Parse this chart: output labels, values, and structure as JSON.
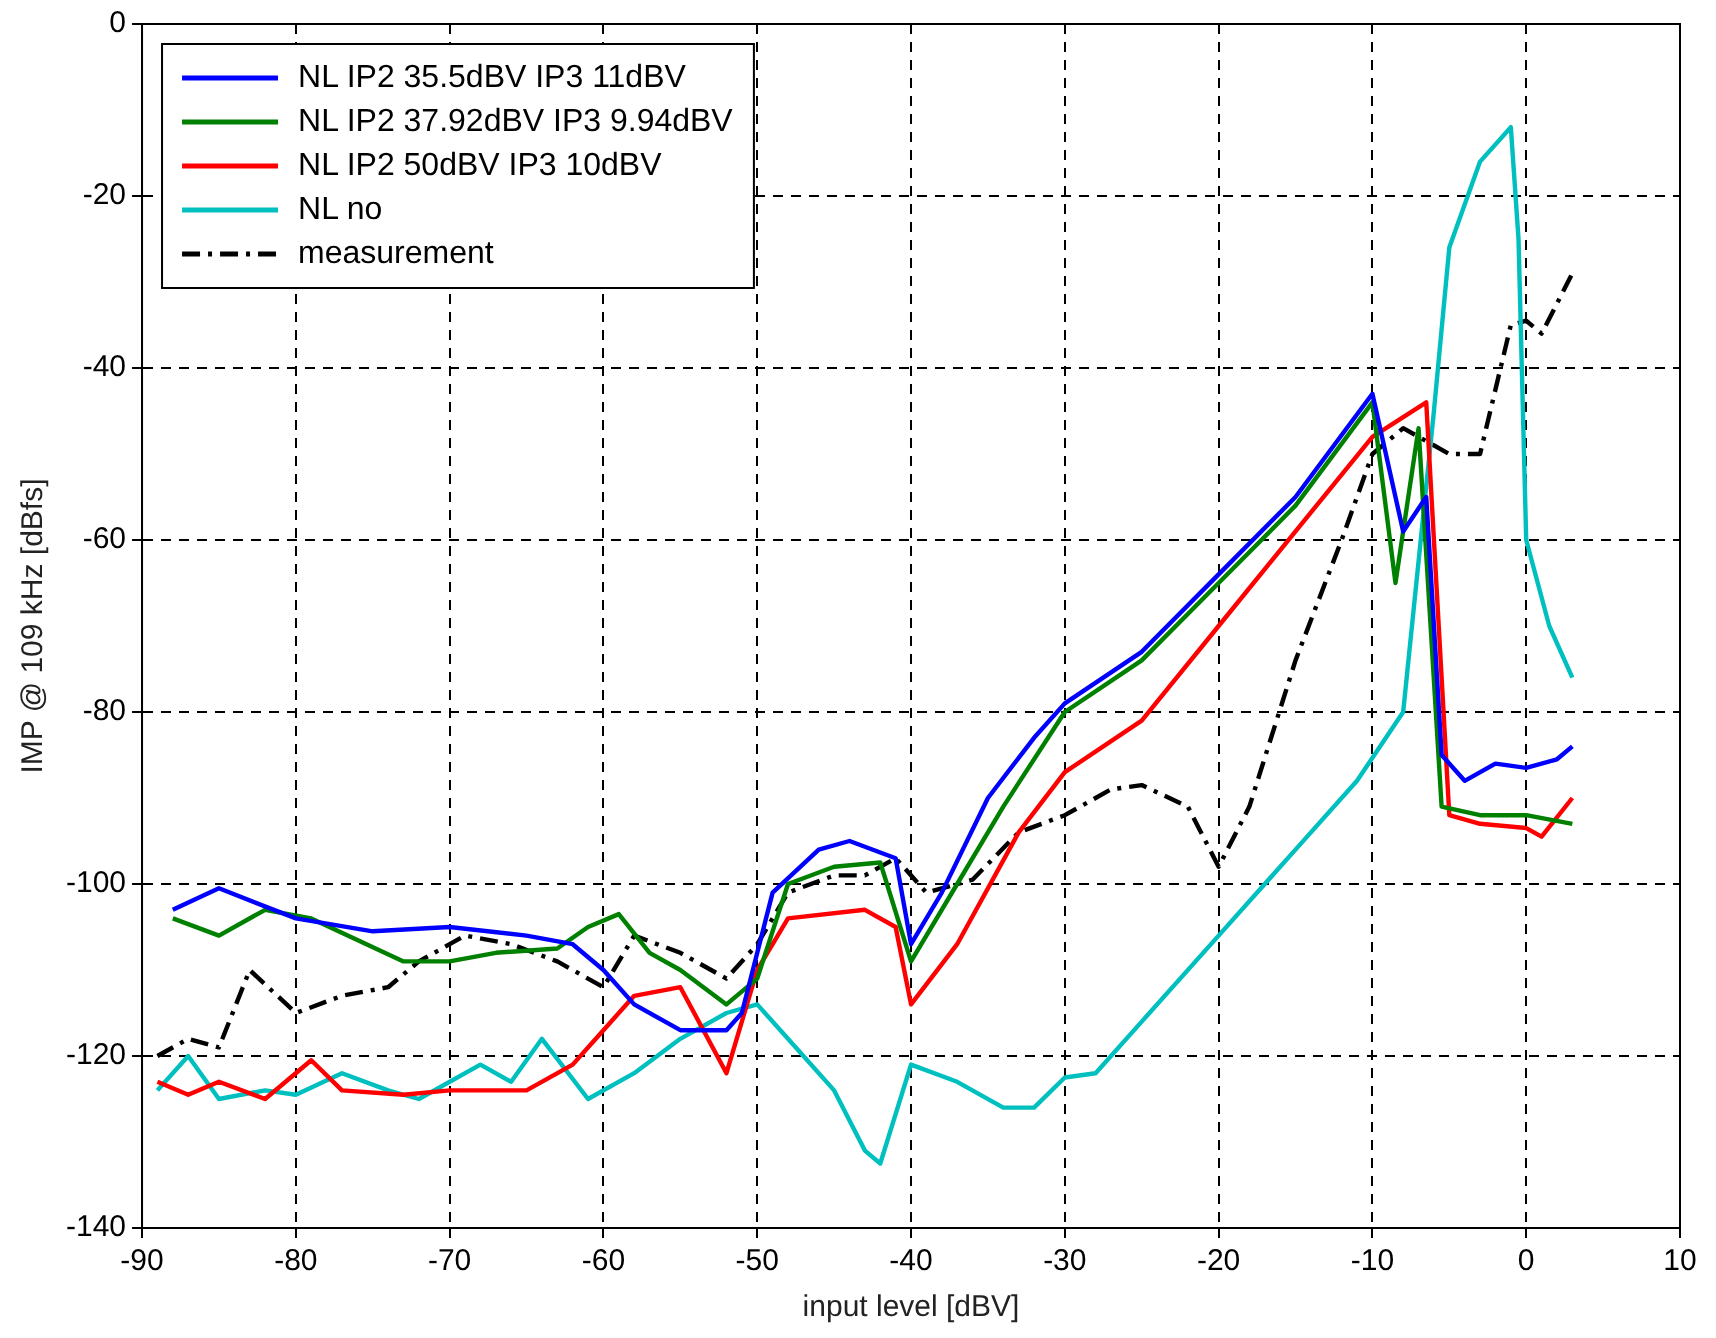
{
  "chart_data": {
    "type": "line",
    "xlabel": "input level [dBV]",
    "ylabel": "IMP @ 109 kHz [dBfs]",
    "xlim": [
      -90,
      10
    ],
    "xticks": [
      -90,
      -80,
      -70,
      -60,
      -50,
      -40,
      -30,
      -20,
      -10,
      0,
      10
    ],
    "ylim": [
      -140,
      0
    ],
    "yticks": [
      -140,
      -120,
      -100,
      -80,
      -60,
      -40,
      -20,
      0
    ],
    "grid": true,
    "legend": "top left",
    "marker": "none",
    "series": [
      {
        "name": "NL IP2 35.5dBV IP3 11dBV",
        "color": "#0000ff",
        "x": [
          -88,
          -85,
          -80,
          -75,
          -70,
          -65,
          -62,
          -60,
          -58,
          -55,
          -52,
          -51,
          -49,
          -46,
          -44,
          -41,
          -40,
          -38,
          -35,
          -32,
          -30,
          -25,
          -20,
          -15,
          -10,
          -8,
          -6.5,
          -5.5,
          -4,
          -2,
          0,
          2,
          3
        ],
        "values": [
          -103,
          -100.5,
          -104,
          -105.5,
          -105,
          -106,
          -107,
          -110,
          -114,
          -117,
          -117,
          -115,
          -101,
          -96,
          -95,
          -97,
          -107,
          -101,
          -90,
          -83,
          -79,
          -73,
          -64,
          -55,
          -43,
          -59,
          -55,
          -85,
          -88,
          -86,
          -86.5,
          -85.5,
          -84
        ]
      },
      {
        "name": "NL IP2 37.92dBV IP3 9.94dBV",
        "color": "#008000",
        "x": [
          -88,
          -85,
          -82,
          -79,
          -76,
          -73,
          -70,
          -67,
          -63,
          -61,
          -59,
          -57,
          -55,
          -52,
          -50,
          -48,
          -45,
          -42,
          -40,
          -37,
          -34,
          -30,
          -25,
          -20,
          -15,
          -10,
          -8.5,
          -7,
          -5.5,
          -3,
          0,
          3
        ],
        "values": [
          -104,
          -106,
          -103,
          -104,
          -106.5,
          -109,
          -109,
          -108,
          -107.5,
          -105,
          -103.5,
          -108,
          -110,
          -114,
          -111,
          -100,
          -98,
          -97.5,
          -109,
          -100,
          -91,
          -80,
          -74,
          -65,
          -56,
          -44,
          -65,
          -47,
          -91,
          -92,
          -92,
          -93
        ]
      },
      {
        "name": "NL IP2 50dBV IP3 10dBV",
        "color": "#ff0000",
        "x": [
          -89,
          -87,
          -85,
          -82,
          -79,
          -77,
          -73,
          -70,
          -65,
          -62,
          -60,
          -58,
          -55,
          -52,
          -50,
          -48,
          -43,
          -41,
          -40,
          -37,
          -33,
          -30,
          -25,
          -20,
          -15,
          -10,
          -6.5,
          -5,
          -3,
          0,
          1,
          3
        ],
        "values": [
          -123,
          -124.5,
          -123,
          -125,
          -120.5,
          -124,
          -124.5,
          -124,
          -124,
          -121,
          -117,
          -113,
          -112,
          -122,
          -110,
          -104,
          -103,
          -105,
          -114,
          -107,
          -94,
          -87,
          -81,
          -70,
          -59,
          -48,
          -44,
          -92,
          -93,
          -93.5,
          -94.5,
          -90
        ]
      },
      {
        "name": "NL no",
        "color": "#00bfbf",
        "x": [
          -89,
          -87,
          -85,
          -82,
          -80,
          -77,
          -74,
          -72,
          -68,
          -66,
          -64,
          -61,
          -58,
          -55,
          -52,
          -50,
          -48,
          -45,
          -43,
          -42,
          -40,
          -37,
          -34,
          -32,
          -30,
          -28,
          -25,
          -20,
          -15,
          -11,
          -8,
          -6,
          -5,
          -4,
          -3,
          -1,
          -0.5,
          0,
          1.5,
          3
        ],
        "values": [
          -124,
          -120,
          -125,
          -124,
          -124.5,
          -122,
          -124,
          -125,
          -121,
          -123,
          -118,
          -125,
          -122,
          -118,
          -115,
          -114,
          -118,
          -124,
          -131,
          -132.5,
          -121,
          -123,
          -126,
          -126,
          -122.5,
          -122,
          -116,
          -106,
          -96,
          -88,
          -80,
          -45,
          -26,
          -21,
          -16,
          -12,
          -25,
          -60,
          -70,
          -76
        ]
      },
      {
        "name": "measurement",
        "color": "#000000",
        "line_style": "dashed",
        "x": [
          -89,
          -87,
          -85,
          -83,
          -80,
          -77,
          -74,
          -72,
          -69,
          -66,
          -63,
          -60,
          -58,
          -55,
          -52,
          -50,
          -48,
          -45,
          -43,
          -41,
          -39,
          -36,
          -33,
          -30,
          -27,
          -25,
          -22,
          -20,
          -18,
          -15,
          -12,
          -10,
          -8,
          -5,
          -3,
          -1,
          0,
          1,
          3
        ],
        "values": [
          -120,
          -118,
          -119,
          -110,
          -115,
          -113,
          -112,
          -109,
          -106,
          -107,
          -109,
          -112,
          -106,
          -108,
          -111,
          -107,
          -101,
          -99,
          -99,
          -97,
          -101,
          -99.5,
          -94,
          -92,
          -89,
          -88.5,
          -91,
          -98,
          -91,
          -74,
          -60,
          -50,
          -47,
          -50,
          -50,
          -35,
          -34.5,
          -36,
          -29
        ]
      }
    ]
  }
}
